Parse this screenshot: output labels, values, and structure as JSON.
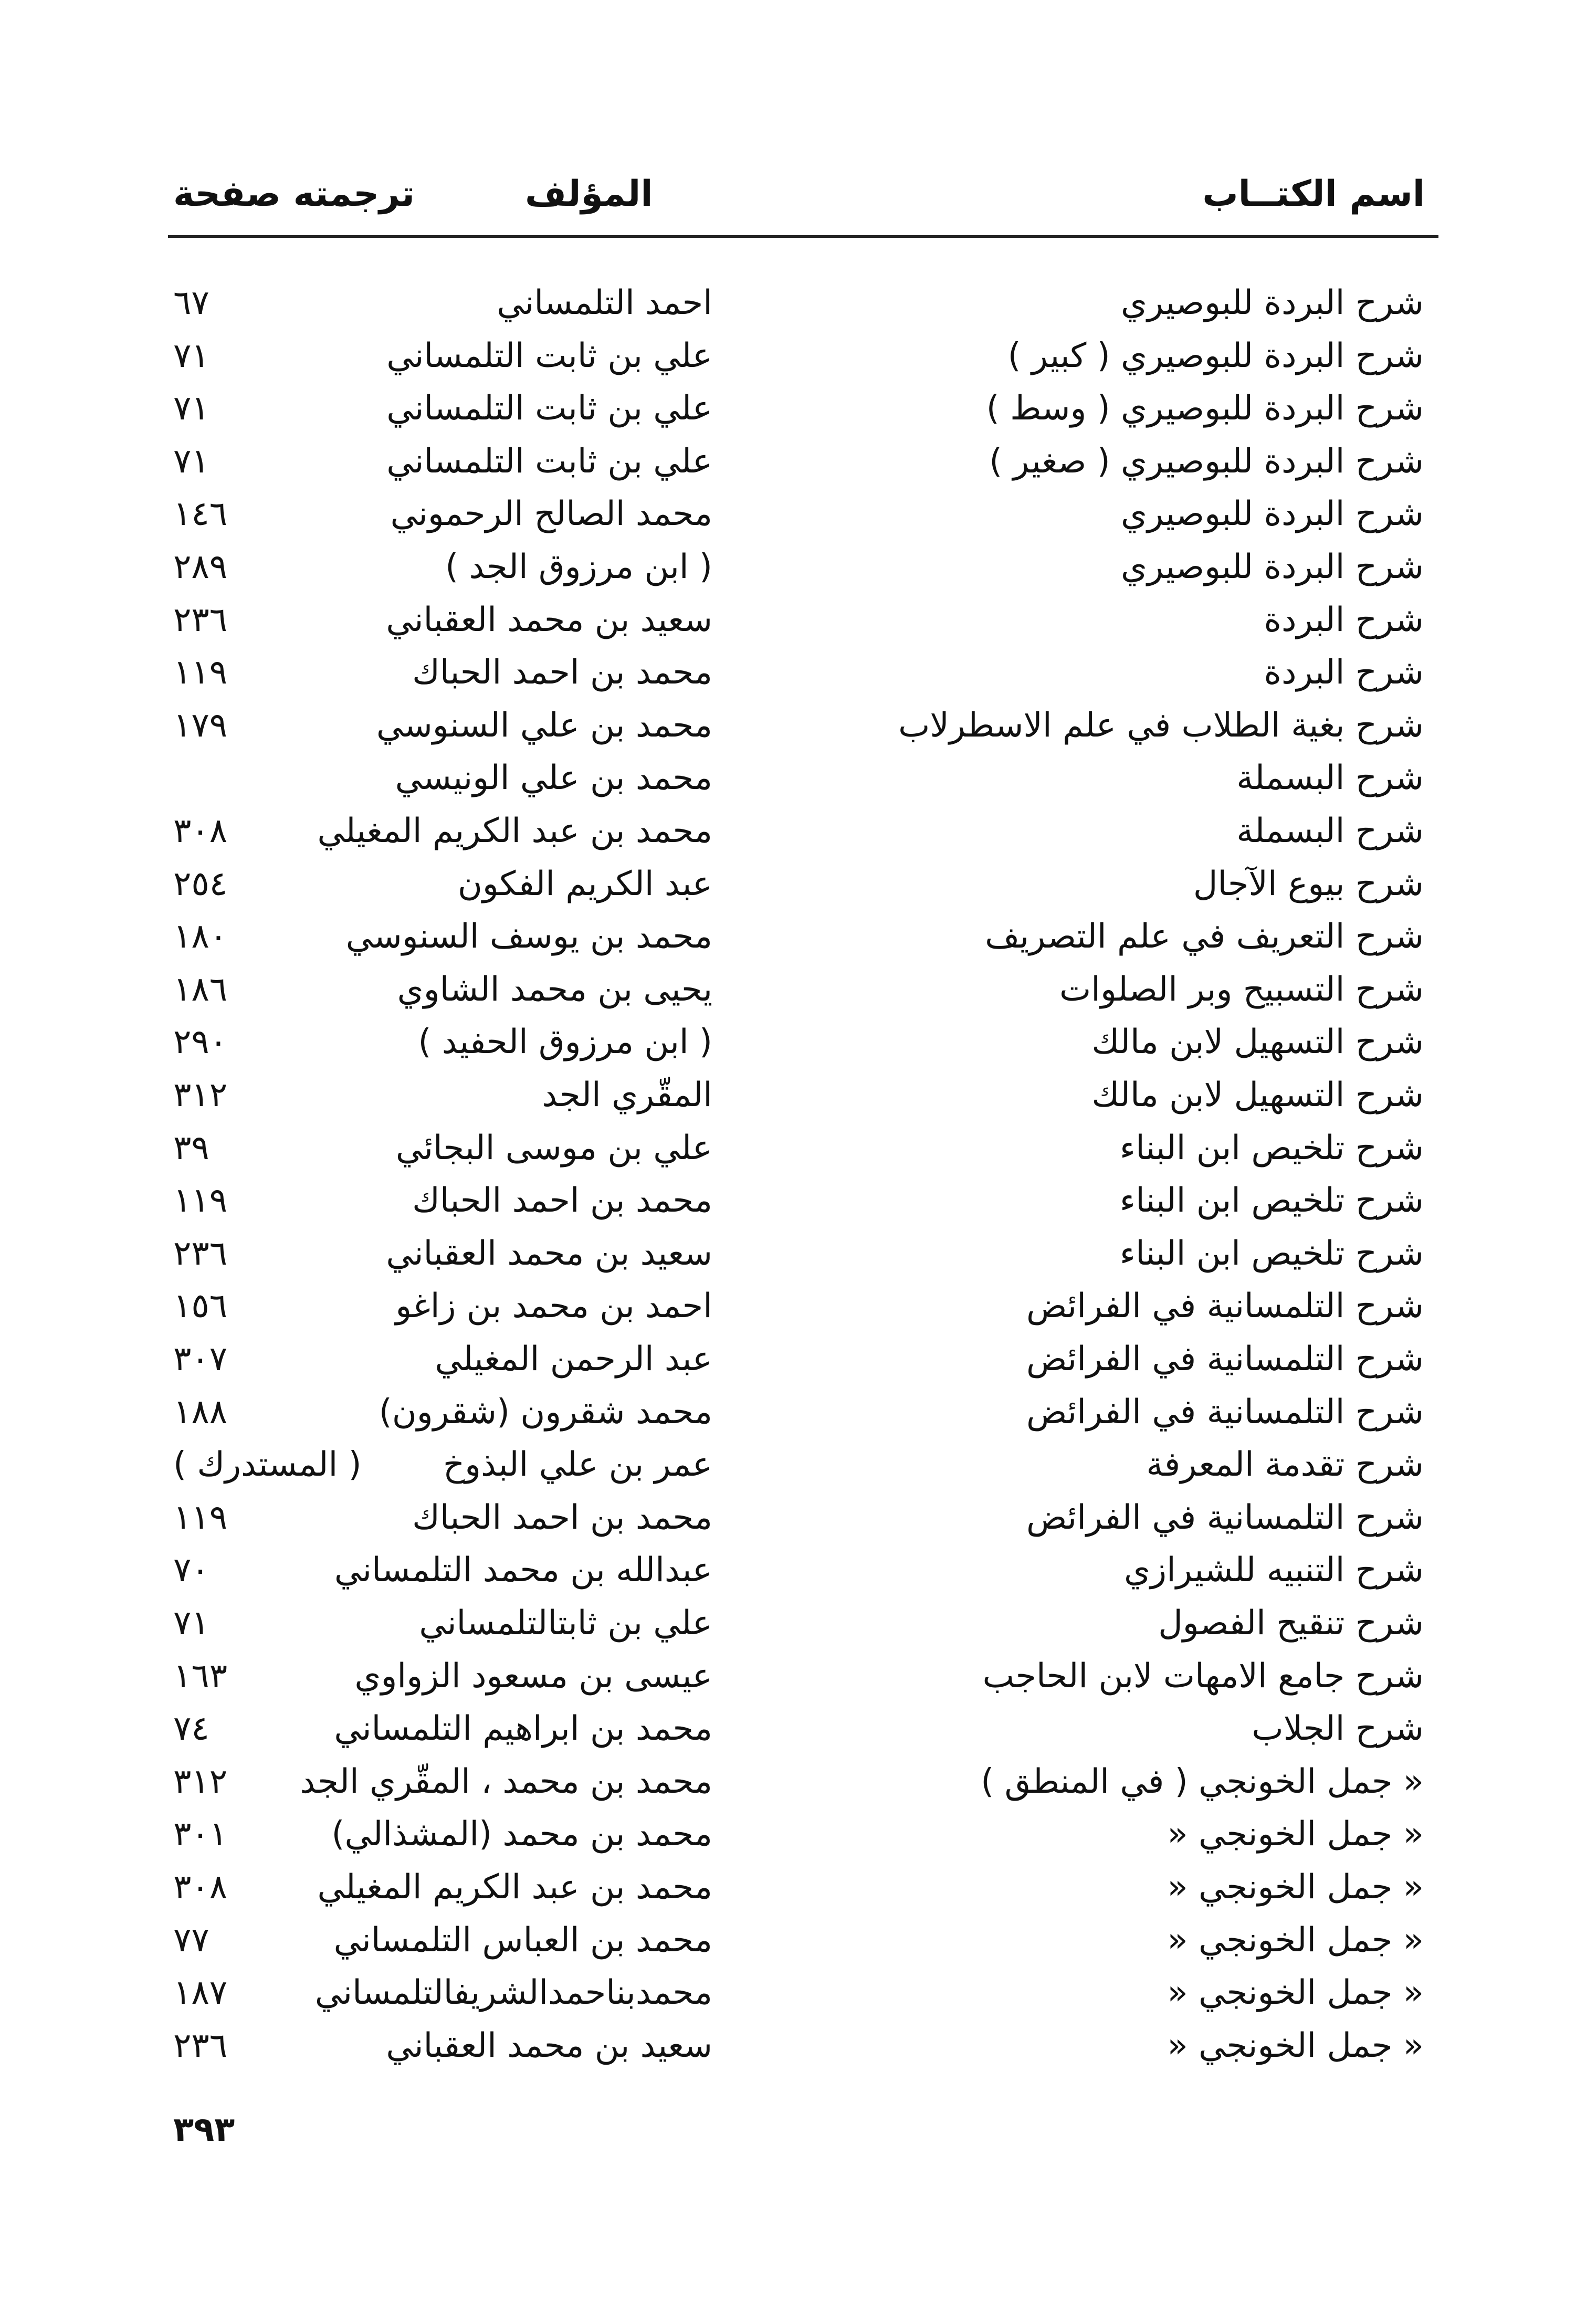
{
  "header": {
    "title_col": "اسم الكتــاب",
    "author_col": "المؤلف",
    "page_col": "ترجمته صفحة"
  },
  "rows": [
    {
      "title": "شرح البردة للبوصيري",
      "author": "احمد التلمساني",
      "page": "٦٧"
    },
    {
      "title": "شرح البردة للبوصيري ( كبير )",
      "author": "علي بن ثابت التلمساني",
      "page": "٧١"
    },
    {
      "title": "شرح البردة للبوصيري ( وسط )",
      "author": "علي بن ثابت التلمساني",
      "page": "٧١"
    },
    {
      "title": "شرح البردة للبوصيري ( صغير )",
      "author": "علي بن ثابت التلمساني",
      "page": "٧١"
    },
    {
      "title": "شرح البردة للبوصيري",
      "author": "محمد الصالح الرحموني",
      "page": "١٤٦"
    },
    {
      "title": "شرح البردة للبوصيري",
      "author": "( ابن مرزوق الجد )",
      "page": "٢٨٩"
    },
    {
      "title": "شرح البردة",
      "author": "سعيد بن محمد العقباني",
      "page": "٢٣٦"
    },
    {
      "title": "شرح البردة",
      "author": "محمد بن احمد الحباك",
      "page": "١١٩"
    },
    {
      "title": "شرح بغية الطلاب في علم الاسطرلاب",
      "author": "محمد بن علي السنوسي",
      "page": "١٧٩"
    },
    {
      "title": "شرح البسملة",
      "author": "محمد بن علي الونيسي",
      "page": ""
    },
    {
      "title": "شرح البسملة",
      "author": "محمد بن عبد الكريم المغيلي",
      "page": "٣٠٨"
    },
    {
      "title": "شرح بيوع الآجال",
      "author": "عبد الكريم الفكون",
      "page": "٢٥٤"
    },
    {
      "title": "شرح التعريف في علم التصريف",
      "author": "محمد بن يوسف السنوسي",
      "page": "١٨٠"
    },
    {
      "title": "شرح التسبيح وبر الصلوات",
      "author": "يحيى بن محمد الشاوي",
      "page": "١٨٦"
    },
    {
      "title": "شرح التسهيل لابن مالك",
      "author": "( ابن مرزوق الحفيد )",
      "page": "٢٩٠"
    },
    {
      "title": "شرح التسهيل لابن مالك",
      "author": "المقّري الجد",
      "page": "٣١٢"
    },
    {
      "title": "شرح تلخيص ابن البناء",
      "author": "علي بن موسى البجائي",
      "page": "٣٩"
    },
    {
      "title": "شرح تلخيص ابن البناء",
      "author": "محمد بن احمد الحباك",
      "page": "١١٩"
    },
    {
      "title": "شرح تلخيص ابن البناء",
      "author": "سعيد بن محمد العقباني",
      "page": "٢٣٦"
    },
    {
      "title": "شرح التلمسانية في الفرائض",
      "author": "احمد بن محمد بن زاغو",
      "page": "١٥٦"
    },
    {
      "title": "شرح التلمسانية في الفرائض",
      "author": "عبد الرحمن المغيلي",
      "page": "٣٠٧"
    },
    {
      "title": "شرح التلمسانية في الفرائض",
      "author": "محمد شقرون (شقرون)",
      "page": "١٨٨"
    },
    {
      "title": "شرح تقدمة المعرفة",
      "author": "عمر بن علي البذوخ",
      "page": "( المستدرك )"
    },
    {
      "title": "شرح التلمسانية في الفرائض",
      "author": "محمد بن احمد الحباك",
      "page": "١١٩"
    },
    {
      "title": "شرح التنبيه للشيرازي",
      "author": "عبدالله بن محمد التلمساني",
      "page": "٧٠"
    },
    {
      "title": "شرح تنقيح الفصول",
      "author": "علي بن ثابتالتلمساني",
      "page": "٧١"
    },
    {
      "title": "شرح جامع الامهات لابن الحاجب",
      "author": "عيسى بن مسعود الزواوي",
      "page": "١٦٣"
    },
    {
      "title": "شرح الجلاب",
      "author": "محمد بن ابراهيم التلمساني",
      "page": "٧٤"
    },
    {
      "title": "« جمل الخونجي ( في المنطق )",
      "author": "محمد بن محمد ، المقّري الجد",
      "page": "٣١٢"
    },
    {
      "title": "« جمل الخونجي      «",
      "author": "محمد بن محمد (المشذالي)",
      "page": "٣٠١"
    },
    {
      "title": "« جمل الخونجي      «",
      "author": "محمد بن عبد الكريم المغيلي",
      "page": "٣٠٨"
    },
    {
      "title": "« جمل الخونجي      «",
      "author": "محمد بن العباس التلمساني",
      "page": "٧٧"
    },
    {
      "title": "« جمل الخونجي      «",
      "author": "محمدبناحمدالشريفالتلمساني",
      "page": "١٨٧"
    },
    {
      "title": "« جمل الخونجي      «",
      "author": "سعيد بن محمد العقباني",
      "page": "٢٣٦"
    }
  ],
  "page_number": "٣٩٣"
}
